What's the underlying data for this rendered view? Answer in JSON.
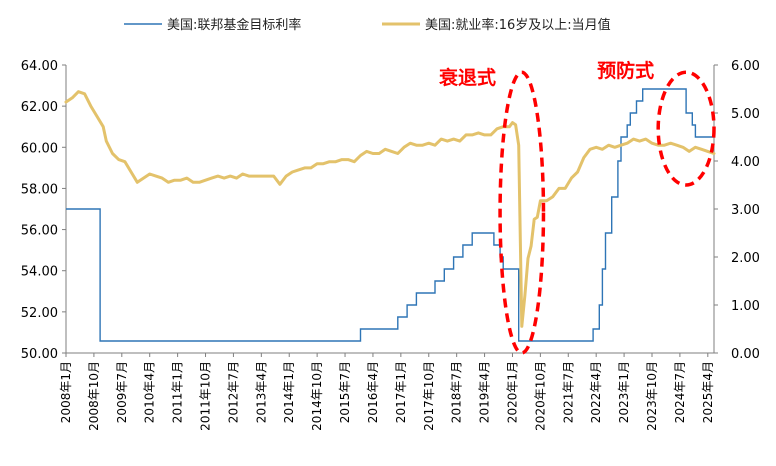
{
  "chart_data": {
    "type": "line",
    "legend": {
      "placement": "top",
      "entries": [
        {
          "label": "美国:联邦基金目标利率",
          "color": "#2e75b6"
        },
        {
          "label": "美国:就业率:16岁及以上:当月值",
          "color": "#e3c26b"
        }
      ]
    },
    "left_axis": {
      "ticks": [
        "50.00",
        "52.00",
        "54.00",
        "56.00",
        "58.00",
        "60.00",
        "62.00",
        "64.00"
      ],
      "ylim": [
        50,
        64
      ]
    },
    "right_axis": {
      "ticks": [
        "0.00",
        "1.00",
        "2.00",
        "3.00",
        "4.00",
        "5.00",
        "6.00"
      ],
      "ylim": [
        0,
        6
      ]
    },
    "x_ticks": [
      "2008年1月",
      "2008年10月",
      "2009年7月",
      "2010年4月",
      "2011年1月",
      "2011年10月",
      "2012年7月",
      "2013年4月",
      "2014年1月",
      "2014年10月",
      "2015年7月",
      "2016年4月",
      "2017年1月",
      "2017年10月",
      "2018年7月",
      "2019年4月",
      "2020年1月",
      "2020年10月",
      "2021年7月",
      "2022年4月",
      "2023年1月",
      "2023年10月",
      "2024年7月",
      "2025年4月"
    ],
    "xlim": [
      "2008-01",
      "2025-06"
    ],
    "series": [
      {
        "name": "美国:联邦基金目标利率",
        "axis": "right",
        "color": "#2e75b6",
        "points": [
          [
            "2008-01",
            3.0
          ],
          [
            "2008-10",
            3.0
          ],
          [
            "2008-12",
            0.25
          ],
          [
            "2015-11",
            0.25
          ],
          [
            "2015-12",
            0.5
          ],
          [
            "2016-11",
            0.5
          ],
          [
            "2016-12",
            0.75
          ],
          [
            "2017-02",
            0.75
          ],
          [
            "2017-03",
            1.0
          ],
          [
            "2017-05",
            1.0
          ],
          [
            "2017-06",
            1.25
          ],
          [
            "2017-11",
            1.25
          ],
          [
            "2017-12",
            1.5
          ],
          [
            "2018-02",
            1.5
          ],
          [
            "2018-03",
            1.75
          ],
          [
            "2018-05",
            1.75
          ],
          [
            "2018-06",
            2.0
          ],
          [
            "2018-08",
            2.0
          ],
          [
            "2018-09",
            2.25
          ],
          [
            "2018-11",
            2.25
          ],
          [
            "2018-12",
            2.5
          ],
          [
            "2019-06",
            2.5
          ],
          [
            "2019-07",
            2.25
          ],
          [
            "2019-08",
            2.25
          ],
          [
            "2019-09",
            2.0
          ],
          [
            "2019-09",
            2.0
          ],
          [
            "2019-10",
            1.75
          ],
          [
            "2020-02",
            1.75
          ],
          [
            "2020-03",
            0.25
          ],
          [
            "2022-02",
            0.25
          ],
          [
            "2022-03",
            0.5
          ],
          [
            "2022-04",
            0.5
          ],
          [
            "2022-05",
            1.0
          ],
          [
            "2022-06",
            1.75
          ],
          [
            "2022-07",
            2.5
          ],
          [
            "2022-09",
            3.25
          ],
          [
            "2022-10",
            3.25
          ],
          [
            "2022-11",
            4.0
          ],
          [
            "2022-12",
            4.5
          ],
          [
            "2023-02",
            4.75
          ],
          [
            "2023-03",
            5.0
          ],
          [
            "2023-05",
            5.25
          ],
          [
            "2023-07",
            5.5
          ],
          [
            "2024-08",
            5.5
          ],
          [
            "2024-09",
            5.0
          ],
          [
            "2024-11",
            4.75
          ],
          [
            "2024-12",
            4.5
          ],
          [
            "2025-06",
            4.5
          ]
        ]
      },
      {
        "name": "美国:就业率:16岁及以上:当月值",
        "axis": "left",
        "color": "#e3c26b",
        "points": [
          [
            "2008-01",
            62.2
          ],
          [
            "2008-03",
            62.4
          ],
          [
            "2008-05",
            62.7
          ],
          [
            "2008-07",
            62.6
          ],
          [
            "2008-09",
            62.0
          ],
          [
            "2008-11",
            61.5
          ],
          [
            "2009-01",
            61.0
          ],
          [
            "2009-02",
            60.3
          ],
          [
            "2009-04",
            59.7
          ],
          [
            "2009-06",
            59.4
          ],
          [
            "2009-08",
            59.3
          ],
          [
            "2009-10",
            58.8
          ],
          [
            "2009-12",
            58.3
          ],
          [
            "2010-02",
            58.5
          ],
          [
            "2010-04",
            58.7
          ],
          [
            "2010-06",
            58.6
          ],
          [
            "2010-08",
            58.5
          ],
          [
            "2010-10",
            58.3
          ],
          [
            "2010-12",
            58.4
          ],
          [
            "2011-02",
            58.4
          ],
          [
            "2011-04",
            58.5
          ],
          [
            "2011-06",
            58.3
          ],
          [
            "2011-08",
            58.3
          ],
          [
            "2011-10",
            58.4
          ],
          [
            "2011-12",
            58.5
          ],
          [
            "2012-02",
            58.6
          ],
          [
            "2012-04",
            58.5
          ],
          [
            "2012-06",
            58.6
          ],
          [
            "2012-08",
            58.5
          ],
          [
            "2012-10",
            58.7
          ],
          [
            "2012-12",
            58.6
          ],
          [
            "2013-02",
            58.6
          ],
          [
            "2013-04",
            58.6
          ],
          [
            "2013-06",
            58.6
          ],
          [
            "2013-08",
            58.6
          ],
          [
            "2013-10",
            58.2
          ],
          [
            "2013-12",
            58.6
          ],
          [
            "2014-02",
            58.8
          ],
          [
            "2014-04",
            58.9
          ],
          [
            "2014-06",
            59.0
          ],
          [
            "2014-08",
            59.0
          ],
          [
            "2014-10",
            59.2
          ],
          [
            "2014-12",
            59.2
          ],
          [
            "2015-02",
            59.3
          ],
          [
            "2015-04",
            59.3
          ],
          [
            "2015-06",
            59.4
          ],
          [
            "2015-08",
            59.4
          ],
          [
            "2015-10",
            59.3
          ],
          [
            "2015-12",
            59.6
          ],
          [
            "2016-02",
            59.8
          ],
          [
            "2016-04",
            59.7
          ],
          [
            "2016-06",
            59.7
          ],
          [
            "2016-08",
            59.9
          ],
          [
            "2016-10",
            59.8
          ],
          [
            "2016-12",
            59.7
          ],
          [
            "2017-02",
            60.0
          ],
          [
            "2017-04",
            60.2
          ],
          [
            "2017-06",
            60.1
          ],
          [
            "2017-08",
            60.1
          ],
          [
            "2017-10",
            60.2
          ],
          [
            "2017-12",
            60.1
          ],
          [
            "2018-02",
            60.4
          ],
          [
            "2018-04",
            60.3
          ],
          [
            "2018-06",
            60.4
          ],
          [
            "2018-08",
            60.3
          ],
          [
            "2018-10",
            60.6
          ],
          [
            "2018-12",
            60.6
          ],
          [
            "2019-02",
            60.7
          ],
          [
            "2019-04",
            60.6
          ],
          [
            "2019-06",
            60.6
          ],
          [
            "2019-08",
            60.9
          ],
          [
            "2019-10",
            61.0
          ],
          [
            "2019-12",
            61.0
          ],
          [
            "2020-01",
            61.2
          ],
          [
            "2020-02",
            61.1
          ],
          [
            "2020-03",
            60.1
          ],
          [
            "2020-04",
            51.3
          ],
          [
            "2020-05",
            52.8
          ],
          [
            "2020-06",
            54.6
          ],
          [
            "2020-07",
            55.2
          ],
          [
            "2020-08",
            56.5
          ],
          [
            "2020-09",
            56.6
          ],
          [
            "2020-10",
            57.4
          ],
          [
            "2020-11",
            57.4
          ],
          [
            "2020-12",
            57.4
          ],
          [
            "2021-02",
            57.6
          ],
          [
            "2021-04",
            58.0
          ],
          [
            "2021-06",
            58.0
          ],
          [
            "2021-08",
            58.5
          ],
          [
            "2021-10",
            58.8
          ],
          [
            "2021-12",
            59.5
          ],
          [
            "2022-02",
            59.9
          ],
          [
            "2022-04",
            60.0
          ],
          [
            "2022-06",
            59.9
          ],
          [
            "2022-08",
            60.1
          ],
          [
            "2022-10",
            60.0
          ],
          [
            "2022-12",
            60.1
          ],
          [
            "2023-02",
            60.2
          ],
          [
            "2023-04",
            60.4
          ],
          [
            "2023-06",
            60.3
          ],
          [
            "2023-08",
            60.4
          ],
          [
            "2023-10",
            60.2
          ],
          [
            "2023-12",
            60.1
          ],
          [
            "2024-02",
            60.1
          ],
          [
            "2024-04",
            60.2
          ],
          [
            "2024-06",
            60.1
          ],
          [
            "2024-08",
            60.0
          ],
          [
            "2024-10",
            59.8
          ],
          [
            "2024-12",
            60.0
          ],
          [
            "2025-02",
            59.9
          ],
          [
            "2025-04",
            59.8
          ],
          [
            "2025-06",
            59.7
          ]
        ]
      }
    ],
    "annotations": [
      {
        "text": "衰退式",
        "color": "#ff0000",
        "x_range": [
          "2019-09",
          "2020-11"
        ],
        "right_range": [
          0.0,
          5.85
        ]
      },
      {
        "text": "预防式",
        "color": "#ff0000",
        "x_range": [
          "2023-12",
          "2025-06"
        ],
        "right_range": [
          3.5,
          5.85
        ]
      }
    ]
  }
}
